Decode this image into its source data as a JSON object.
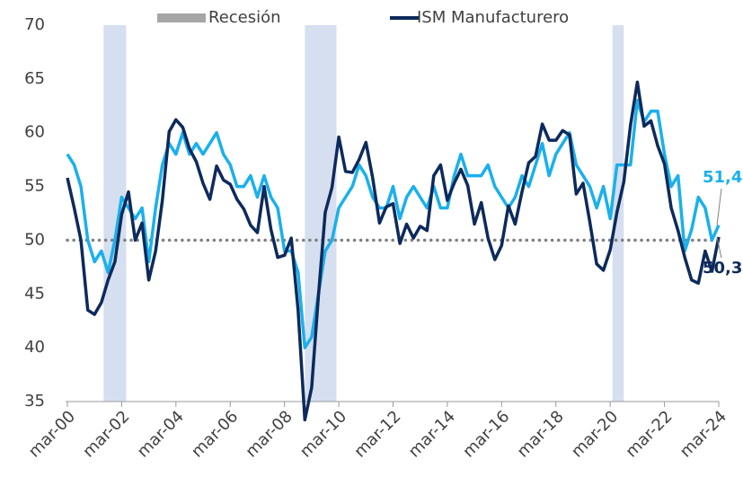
{
  "chart_data": {
    "type": "line",
    "x": [
      "2000-03",
      "2000-06",
      "2000-09",
      "2000-12",
      "2001-03",
      "2001-06",
      "2001-09",
      "2001-12",
      "2002-03",
      "2002-06",
      "2002-09",
      "2002-12",
      "2003-03",
      "2003-06",
      "2003-09",
      "2003-12",
      "2004-03",
      "2004-06",
      "2004-09",
      "2004-12",
      "2005-03",
      "2005-06",
      "2005-09",
      "2005-12",
      "2006-03",
      "2006-06",
      "2006-09",
      "2006-12",
      "2007-03",
      "2007-06",
      "2007-09",
      "2007-12",
      "2008-03",
      "2008-06",
      "2008-09",
      "2008-12",
      "2009-03",
      "2009-06",
      "2009-09",
      "2009-12",
      "2010-03",
      "2010-06",
      "2010-09",
      "2010-12",
      "2011-03",
      "2011-06",
      "2011-09",
      "2011-12",
      "2012-03",
      "2012-06",
      "2012-09",
      "2012-12",
      "2013-03",
      "2013-06",
      "2013-09",
      "2013-12",
      "2014-03",
      "2014-06",
      "2014-09",
      "2014-12",
      "2015-03",
      "2015-06",
      "2015-09",
      "2015-12",
      "2016-03",
      "2016-06",
      "2016-09",
      "2016-12",
      "2017-03",
      "2017-06",
      "2017-09",
      "2017-12",
      "2018-03",
      "2018-06",
      "2018-09",
      "2018-12",
      "2019-03",
      "2019-06",
      "2019-09",
      "2019-12",
      "2020-03",
      "2020-06",
      "2020-09",
      "2020-12",
      "2021-03",
      "2021-06",
      "2021-09",
      "2021-12",
      "2022-03",
      "2022-06",
      "2022-09",
      "2022-12",
      "2023-03",
      "2023-06",
      "2023-09",
      "2023-12",
      "2024-03"
    ],
    "series": [
      {
        "color": "#1ab0ec",
        "end_label": "51,4",
        "values": [
          58,
          57,
          55,
          50,
          48,
          49,
          47,
          50,
          54,
          53,
          52,
          53,
          48,
          53,
          57,
          59,
          58,
          60,
          58,
          59,
          58,
          59,
          60,
          58,
          57,
          55,
          55,
          56,
          54,
          56,
          54,
          53,
          49,
          49,
          47,
          40,
          41,
          45,
          49,
          50,
          53,
          54,
          55,
          57,
          56,
          54,
          53,
          53,
          55,
          52,
          54,
          55,
          54,
          53,
          55,
          53,
          53,
          56,
          58,
          56,
          56,
          56,
          57,
          55,
          54,
          53,
          54,
          56,
          55,
          57,
          59,
          56,
          58,
          59,
          60,
          57,
          56,
          55,
          53,
          55,
          52,
          57,
          57,
          57,
          63,
          61,
          62,
          62,
          58,
          55,
          56,
          49,
          51,
          54,
          53,
          50,
          51.4
        ]
      },
      {
        "name": "ISM Manufacturero",
        "color": "#0d2a5c",
        "end_label": "50,3",
        "values": [
          55.8,
          53,
          50,
          43.5,
          43.1,
          44.2,
          46.3,
          48.0,
          52.4,
          54.5,
          50.0,
          51.6,
          46.3,
          49.0,
          53.7,
          60.1,
          61.2,
          60.5,
          58.5,
          57.3,
          55.3,
          53.8,
          56.9,
          55.6,
          55.2,
          53.8,
          52.9,
          51.4,
          50.7,
          55.0,
          51.0,
          48.4,
          48.6,
          50.2,
          43.5,
          33.3,
          36.3,
          44.8,
          52.6,
          54.9,
          59.6,
          56.4,
          56.3,
          57.5,
          59.1,
          55.8,
          51.6,
          53.1,
          53.4,
          49.7,
          51.5,
          50.2,
          51.3,
          50.9,
          56.0,
          57.0,
          53.7,
          55.3,
          56.6,
          55.1,
          51.5,
          53.5,
          50.2,
          48.2,
          49.5,
          53.2,
          51.5,
          54.5,
          57.2,
          57.8,
          60.8,
          59.3,
          59.3,
          60.2,
          59.8,
          54.3,
          55.3,
          51.7,
          47.8,
          47.2,
          49.1,
          52.6,
          55.4,
          60.7,
          64.7,
          60.6,
          61.1,
          58.8,
          57.1,
          53.0,
          50.9,
          48.4,
          46.3,
          46.0,
          49.0,
          47.1,
          50.3
        ]
      }
    ],
    "recession_name": "Recesión",
    "recession_color": "#d6dff0",
    "recessions": [
      {
        "start": "2001-07",
        "end": "2002-05"
      },
      {
        "start": "2008-12",
        "end": "2010-02"
      },
      {
        "start": "2020-04",
        "end": "2020-09"
      }
    ],
    "reference_line": 50,
    "xlim": [
      "2000-03",
      "2024-03"
    ],
    "xticks": [
      {
        "value": "2000-03",
        "label": "mar-00"
      },
      {
        "value": "2002-03",
        "label": "mar-02"
      },
      {
        "value": "2004-03",
        "label": "mar-04"
      },
      {
        "value": "2006-03",
        "label": "mar-06"
      },
      {
        "value": "2008-03",
        "label": "mar-08"
      },
      {
        "value": "2010-03",
        "label": "mar-10"
      },
      {
        "value": "2012-03",
        "label": "mar-12"
      },
      {
        "value": "2014-03",
        "label": "mar-14"
      },
      {
        "value": "2016-03",
        "label": "mar-16"
      },
      {
        "value": "2018-03",
        "label": "mar-18"
      },
      {
        "value": "2020-03",
        "label": "mar-20"
      },
      {
        "value": "2022-03",
        "label": "mar-22"
      },
      {
        "value": "2024-03",
        "label": "mar-24"
      }
    ],
    "ylim": [
      35,
      70
    ],
    "yticks": [
      35,
      40,
      45,
      50,
      55,
      60,
      65,
      70
    ]
  }
}
